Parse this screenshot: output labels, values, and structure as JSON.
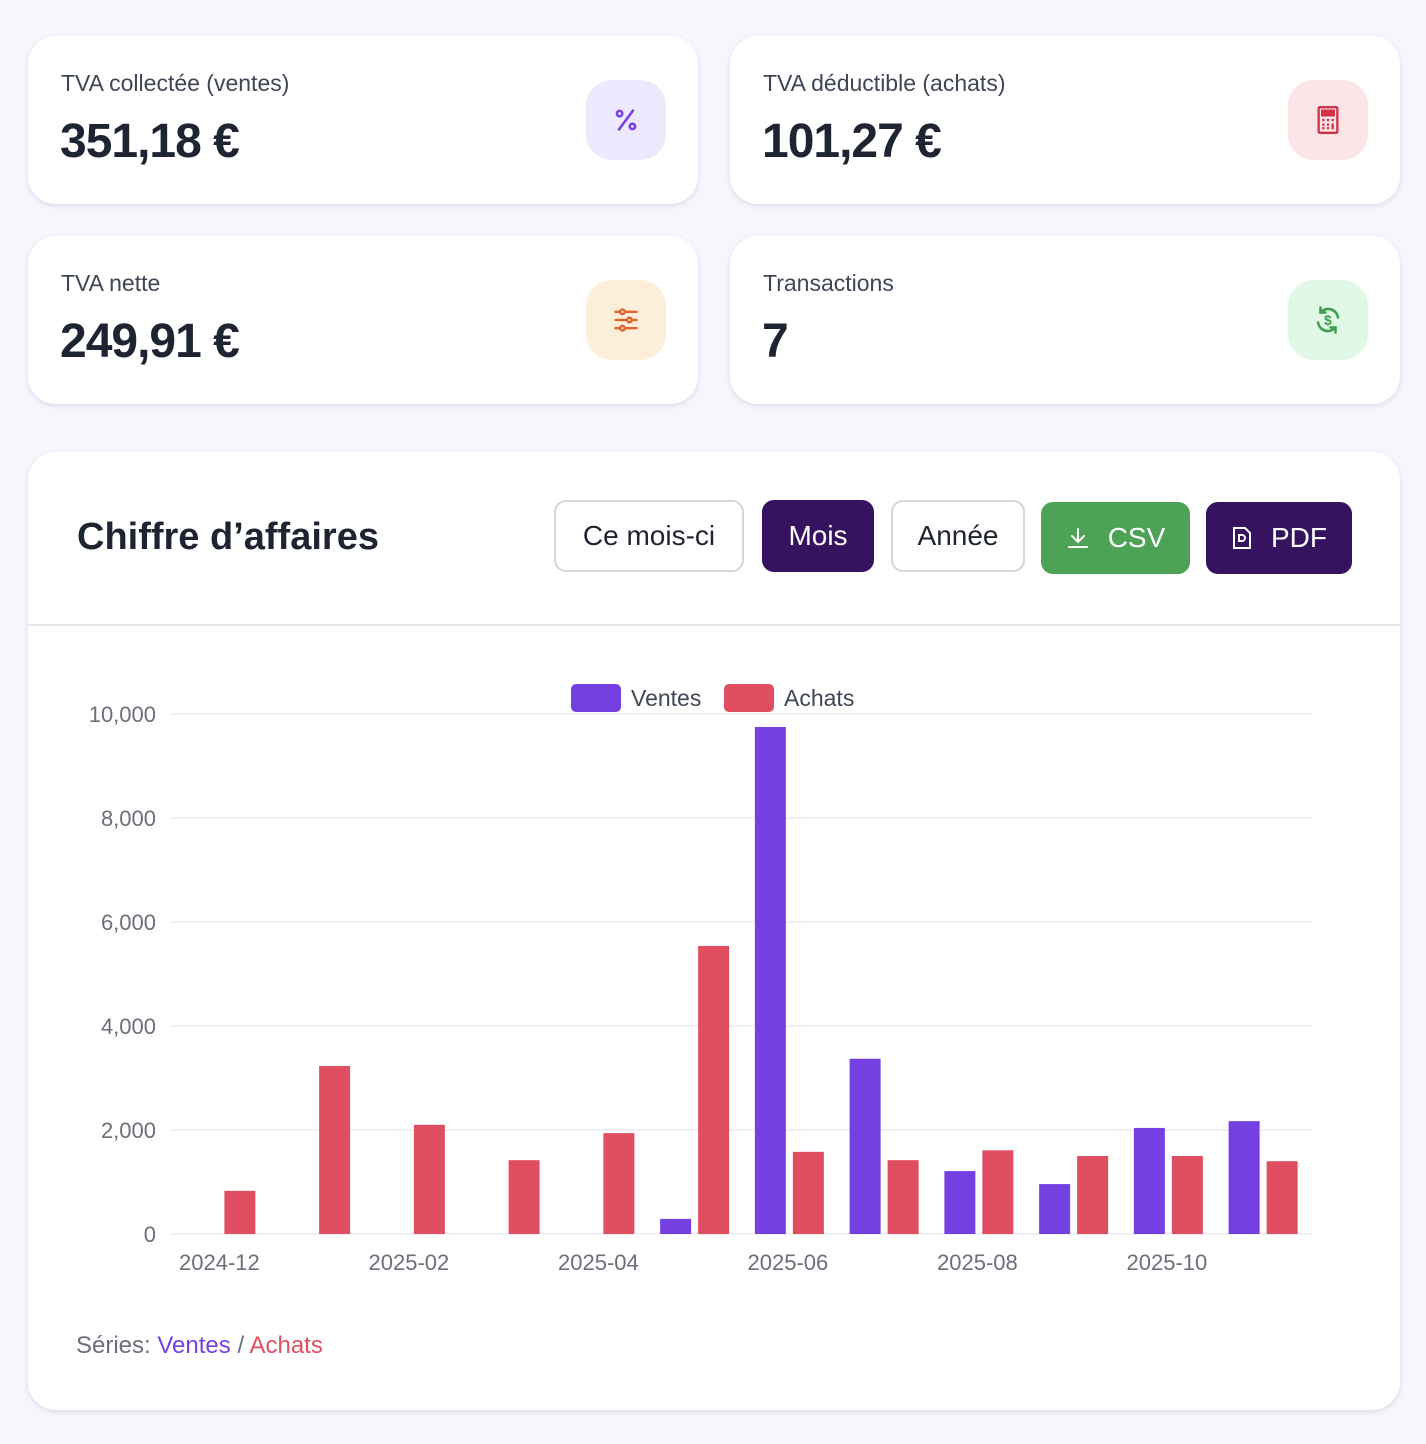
{
  "kpis": [
    {
      "label": "TVA collectée (ventes)",
      "value": "351,18 €",
      "icon": "percent-icon",
      "icon_bg": "#ece8fd",
      "icon_color": "#7a3fe4"
    },
    {
      "label": "TVA déductible (achats)",
      "value": "101,27 €",
      "icon": "calculator-icon",
      "icon_bg": "#fce5e7",
      "icon_color": "#d2334a"
    },
    {
      "label": "TVA nette",
      "value": "249,91 €",
      "icon": "sliders-icon",
      "icon_bg": "#fdeeda",
      "icon_color": "#e0622a"
    },
    {
      "label": "Transactions",
      "value": "7",
      "icon": "currency-exchange-icon",
      "icon_bg": "#e2f8e6",
      "icon_color": "#3d9e4c"
    }
  ],
  "chart_panel": {
    "title": "Chiffre d’affaires",
    "buttons": {
      "this_month": "Ce mois-ci",
      "month": "Mois",
      "year": "Année",
      "csv": "CSV",
      "pdf": "PDF"
    },
    "active_period": "Mois",
    "footer": {
      "prefix": "Séries:",
      "series1": "Ventes",
      "separator": "/",
      "series2": "Achats"
    }
  },
  "chart_data": {
    "type": "bar",
    "categories": [
      "2024-12",
      "2025-01",
      "2025-02",
      "2025-03",
      "2025-04",
      "2025-05",
      "2025-06",
      "2025-07",
      "2025-08",
      "2025-09",
      "2025-10",
      "2025-11"
    ],
    "x_tick_labels": [
      "2024-12",
      "2025-02",
      "2025-04",
      "2025-06",
      "2025-08",
      "2025-10"
    ],
    "series": [
      {
        "name": "Ventes",
        "color": "#7540e2",
        "values": [
          0,
          0,
          0,
          0,
          0,
          290,
          9750,
          3370,
          1210,
          960,
          2040,
          2170
        ]
      },
      {
        "name": "Achats",
        "color": "#e04f61",
        "values": [
          830,
          3230,
          2100,
          1420,
          1940,
          5540,
          1580,
          1420,
          1610,
          1500,
          1500,
          1400
        ]
      }
    ],
    "ylim": [
      0,
      10000
    ],
    "y_ticks": [
      "0",
      "2,000",
      "4,000",
      "6,000",
      "8,000",
      "10,000"
    ],
    "y_tick_values": [
      0,
      2000,
      4000,
      6000,
      8000,
      10000
    ],
    "grid": true,
    "legend": "top-center"
  }
}
